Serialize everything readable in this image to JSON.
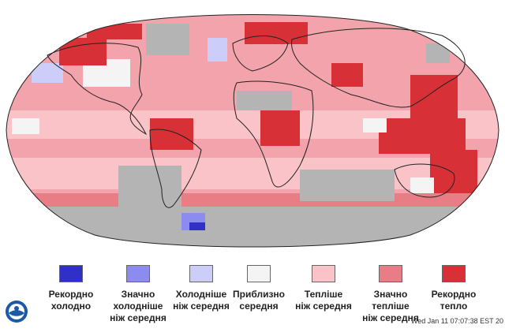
{
  "legend": [
    {
      "label": "Рекордно\nхолодно",
      "color": "#3030c8"
    },
    {
      "label": "Значно\nхолодніше\nніж середня",
      "color": "#8c8cee"
    },
    {
      "label": "Холодніше\nніж середня",
      "color": "#cccdf8"
    },
    {
      "label": "Приблизно\nсередня",
      "color": "#f4f4f4"
    },
    {
      "label": "Тепліше\nніж середня",
      "color": "#f9c3c8"
    },
    {
      "label": "Значно\nтепліше\nніж середня",
      "color": "#e97d86"
    },
    {
      "label": "Рекордно\nтепло",
      "color": "#d83037"
    }
  ],
  "timestamp": "Wed Jan 11 07:07:38 EST 20",
  "map_colors": {
    "ocean_base": "#f3a3ab",
    "warmer": "#f9c3c8",
    "much_warmer": "#e97d86",
    "record_warm": "#d83037",
    "cooler": "#cccdf8",
    "much_cooler": "#8c8cee",
    "record_cold": "#3030c8",
    "near_average": "#f4f4f4",
    "no_data": "#b4b4b4",
    "coastline": "#222222"
  }
}
